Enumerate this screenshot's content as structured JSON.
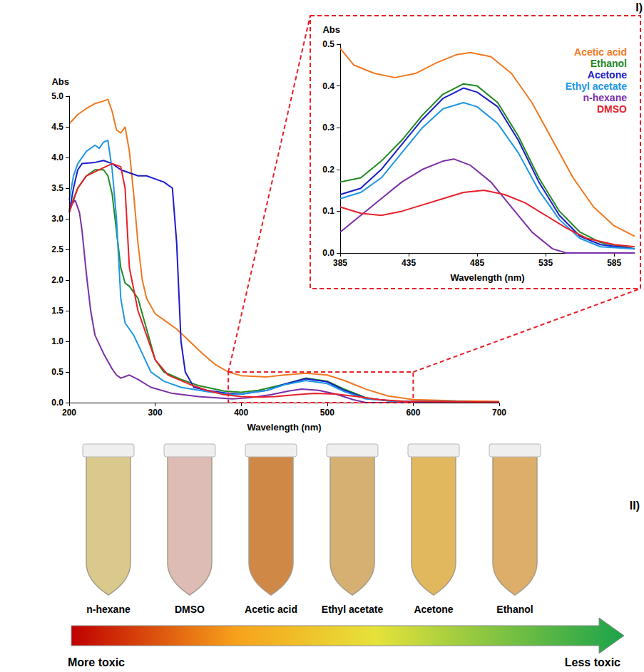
{
  "chart_data": [
    {
      "type": "line",
      "x_label": "Wavelength (nm)",
      "y_label": "Abs",
      "xlim": [
        200,
        700
      ],
      "xticks": [
        200,
        300,
        400,
        500,
        600,
        700
      ],
      "ylim": [
        0,
        5
      ],
      "yticks": [
        {
          "value": 0,
          "label": "0.0"
        },
        0.5,
        {
          "value": 1,
          "label": "1.0"
        },
        1.5,
        {
          "value": 2,
          "label": "2.0"
        },
        2.5,
        {
          "value": 3,
          "label": "3.0"
        },
        3.5,
        {
          "value": 4,
          "label": "4.0"
        },
        4.5,
        {
          "value": 5,
          "label": "5.0"
        }
      ],
      "grid": false,
      "series": [
        {
          "name": "Acetic acid",
          "color": "#f07820",
          "x": [
            200,
            210,
            220,
            230,
            240,
            245,
            250,
            255,
            260,
            265,
            270,
            275,
            280,
            285,
            290,
            300,
            310,
            325,
            340,
            355,
            370,
            385,
            400,
            430,
            450,
            475,
            500,
            520,
            545,
            570,
            600,
            650,
            700
          ],
          "values": [
            4.55,
            4.7,
            4.8,
            4.88,
            4.92,
            4.95,
            4.75,
            4.45,
            4.4,
            4.5,
            4.1,
            3.4,
            2.6,
            2.0,
            1.7,
            1.45,
            1.35,
            1.2,
            1.0,
            0.8,
            0.62,
            0.5,
            0.44,
            0.42,
            0.45,
            0.48,
            0.45,
            0.36,
            0.22,
            0.11,
            0.05,
            0.03,
            0.02
          ]
        },
        {
          "name": "Ethanol",
          "color": "#1f8a1f",
          "x": [
            200,
            210,
            220,
            230,
            240,
            245,
            250,
            255,
            260,
            265,
            270,
            280,
            290,
            300,
            310,
            330,
            350,
            380,
            400,
            420,
            450,
            475,
            500,
            520,
            545,
            570,
            600,
            700
          ],
          "values": [
            3.15,
            3.5,
            3.7,
            3.8,
            3.8,
            3.7,
            3.4,
            2.8,
            2.2,
            1.95,
            1.9,
            1.7,
            1.2,
            0.7,
            0.5,
            0.38,
            0.28,
            0.19,
            0.17,
            0.2,
            0.3,
            0.4,
            0.35,
            0.22,
            0.08,
            0.03,
            0.02,
            0.01
          ]
        },
        {
          "name": "Acetone",
          "color": "#1c1cc8",
          "x": [
            200,
            205,
            210,
            215,
            230,
            240,
            250,
            260,
            270,
            280,
            290,
            300,
            310,
            320,
            325,
            330,
            335,
            345,
            360,
            385,
            400,
            430,
            450,
            475,
            500,
            520,
            545,
            580,
            700
          ],
          "values": [
            3.1,
            3.5,
            3.8,
            3.9,
            3.92,
            3.95,
            3.9,
            3.8,
            3.75,
            3.7,
            3.7,
            3.65,
            3.6,
            3.5,
            2.6,
            1.0,
            0.5,
            0.25,
            0.2,
            0.15,
            0.14,
            0.2,
            0.3,
            0.39,
            0.34,
            0.2,
            0.07,
            0.02,
            0.01
          ]
        },
        {
          "name": "Ethyl acetate",
          "color": "#1e96e6",
          "x": [
            200,
            205,
            210,
            220,
            230,
            235,
            240,
            245,
            250,
            255,
            260,
            265,
            270,
            275,
            285,
            295,
            310,
            330,
            360,
            390,
            400,
            430,
            450,
            475,
            500,
            520,
            545,
            580,
            700
          ],
          "values": [
            3.3,
            3.7,
            3.9,
            4.1,
            4.2,
            4.15,
            4.25,
            4.28,
            3.8,
            3.0,
            1.7,
            1.3,
            1.2,
            1.1,
            0.8,
            0.5,
            0.35,
            0.25,
            0.18,
            0.13,
            0.14,
            0.2,
            0.29,
            0.36,
            0.31,
            0.18,
            0.06,
            0.02,
            0.01
          ]
        },
        {
          "name": "n-hexane",
          "color": "#7a2fa8",
          "x": [
            200,
            207,
            212,
            215,
            220,
            225,
            230,
            240,
            250,
            255,
            260,
            270,
            280,
            295,
            320,
            350,
            390,
            410,
            435,
            455,
            470,
            490,
            510,
            530,
            545,
            600,
            700
          ],
          "values": [
            3.2,
            3.3,
            3.1,
            2.8,
            2.1,
            1.5,
            1.1,
            0.8,
            0.55,
            0.45,
            0.4,
            0.45,
            0.38,
            0.25,
            0.15,
            0.1,
            0.06,
            0.08,
            0.13,
            0.19,
            0.22,
            0.2,
            0.14,
            0.05,
            0,
            0,
            0
          ]
        },
        {
          "name": "DMSO",
          "color": "#e8202a",
          "x": [
            200,
            210,
            220,
            235,
            250,
            260,
            265,
            270,
            280,
            290,
            300,
            315,
            340,
            360,
            380,
            400,
            420,
            440,
            465,
            485,
            510,
            535,
            560,
            590,
            700
          ],
          "values": [
            3.1,
            3.5,
            3.7,
            3.8,
            3.9,
            3.85,
            3.5,
            2.2,
            1.5,
            1.1,
            0.7,
            0.45,
            0.3,
            0.2,
            0.13,
            0.1,
            0.09,
            0.1,
            0.13,
            0.15,
            0.14,
            0.1,
            0.05,
            0.02,
            0.01
          ]
        }
      ]
    },
    {
      "type": "line",
      "x_label": "Wavelength (nm)",
      "y_label": "Abs",
      "xlim": [
        385,
        600
      ],
      "xticks": [
        385,
        435,
        485,
        535,
        585
      ],
      "ylim": [
        0,
        0.5
      ],
      "yticks": [
        {
          "value": 0,
          "label": "0.0"
        },
        0.1,
        0.2,
        0.3,
        0.4,
        0.5
      ],
      "grid": false,
      "legend": "upper right",
      "series": [
        {
          "name": "Acetic acid",
          "color": "#f07820",
          "x": [
            385,
            395,
            410,
            425,
            440,
            455,
            470,
            480,
            495,
            510,
            525,
            540,
            555,
            570,
            585,
            600
          ],
          "values": [
            0.49,
            0.45,
            0.43,
            0.42,
            0.43,
            0.455,
            0.475,
            0.48,
            0.47,
            0.43,
            0.36,
            0.27,
            0.18,
            0.11,
            0.065,
            0.04
          ]
        },
        {
          "name": "Ethanol",
          "color": "#1f8a1f",
          "x": [
            385,
            400,
            415,
            430,
            445,
            460,
            475,
            485,
            500,
            515,
            530,
            545,
            560,
            575,
            600
          ],
          "values": [
            0.17,
            0.18,
            0.22,
            0.27,
            0.33,
            0.38,
            0.405,
            0.4,
            0.36,
            0.28,
            0.18,
            0.1,
            0.05,
            0.025,
            0.01
          ]
        },
        {
          "name": "Acetone",
          "color": "#1c1cc8",
          "x": [
            385,
            400,
            415,
            430,
            445,
            460,
            475,
            485,
            500,
            515,
            530,
            545,
            560,
            575,
            600
          ],
          "values": [
            0.14,
            0.155,
            0.2,
            0.26,
            0.32,
            0.37,
            0.395,
            0.385,
            0.35,
            0.27,
            0.17,
            0.09,
            0.04,
            0.02,
            0.01
          ]
        },
        {
          "name": "Ethyl acetate",
          "color": "#1e96e6",
          "x": [
            385,
            400,
            415,
            430,
            445,
            460,
            475,
            485,
            500,
            515,
            530,
            545,
            560,
            575,
            600
          ],
          "values": [
            0.13,
            0.145,
            0.18,
            0.24,
            0.3,
            0.345,
            0.36,
            0.35,
            0.31,
            0.24,
            0.15,
            0.08,
            0.035,
            0.015,
            0.01
          ]
        },
        {
          "name": "n-hexane",
          "color": "#7a2fa8",
          "x": [
            385,
            400,
            415,
            430,
            445,
            460,
            468,
            480,
            495,
            510,
            525,
            540,
            550,
            600
          ],
          "values": [
            0.05,
            0.09,
            0.13,
            0.17,
            0.2,
            0.22,
            0.225,
            0.21,
            0.17,
            0.11,
            0.05,
            0.01,
            0,
            0
          ]
        },
        {
          "name": "DMSO",
          "color": "#e8202a",
          "x": [
            385,
            400,
            415,
            430,
            445,
            460,
            475,
            490,
            505,
            520,
            535,
            550,
            565,
            585,
            600
          ],
          "values": [
            0.11,
            0.095,
            0.09,
            0.1,
            0.115,
            0.13,
            0.145,
            0.15,
            0.14,
            0.12,
            0.09,
            0.06,
            0.035,
            0.02,
            0.015
          ]
        }
      ]
    }
  ],
  "panel_labels": [
    "I)",
    "II)"
  ],
  "tubes": [
    {
      "label": "n-hexane",
      "color": "#d9c98c"
    },
    {
      "label": "DMSO",
      "color": "#dcbcb4"
    },
    {
      "label": "Acetic acid",
      "color": "#cf8846"
    },
    {
      "label": "Ethyl acetate",
      "color": "#d6b072"
    },
    {
      "label": "Acetone",
      "color": "#e2b85e"
    },
    {
      "label": "Ethanol",
      "color": "#dcae6a"
    }
  ],
  "toxicity_arrow": {
    "start": "More toxic",
    "end": "Less toxic"
  }
}
